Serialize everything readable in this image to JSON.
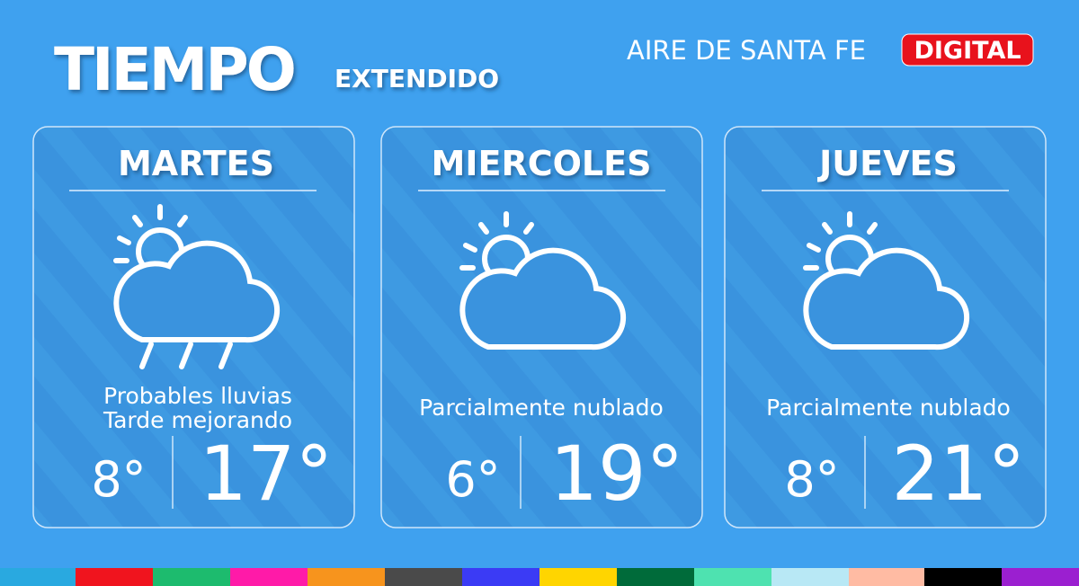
{
  "header": {
    "title": "TIEMPO",
    "subtitle": "EXTENDIDO",
    "brand": "AIRE DE SANTA FE",
    "badge": "DIGITAL"
  },
  "days": [
    {
      "name": "MARTES",
      "description": [
        "Probables lluvias",
        "Tarde mejorando"
      ],
      "min": "8°",
      "max": "17°"
    },
    {
      "name": "MIERCOLES",
      "description": [
        "Parcialmente nublado"
      ],
      "min": "6°",
      "max": "19°"
    },
    {
      "name": "JUEVES",
      "description": [
        "Parcialmente nublado"
      ],
      "min": "8°",
      "max": "21°"
    }
  ]
}
